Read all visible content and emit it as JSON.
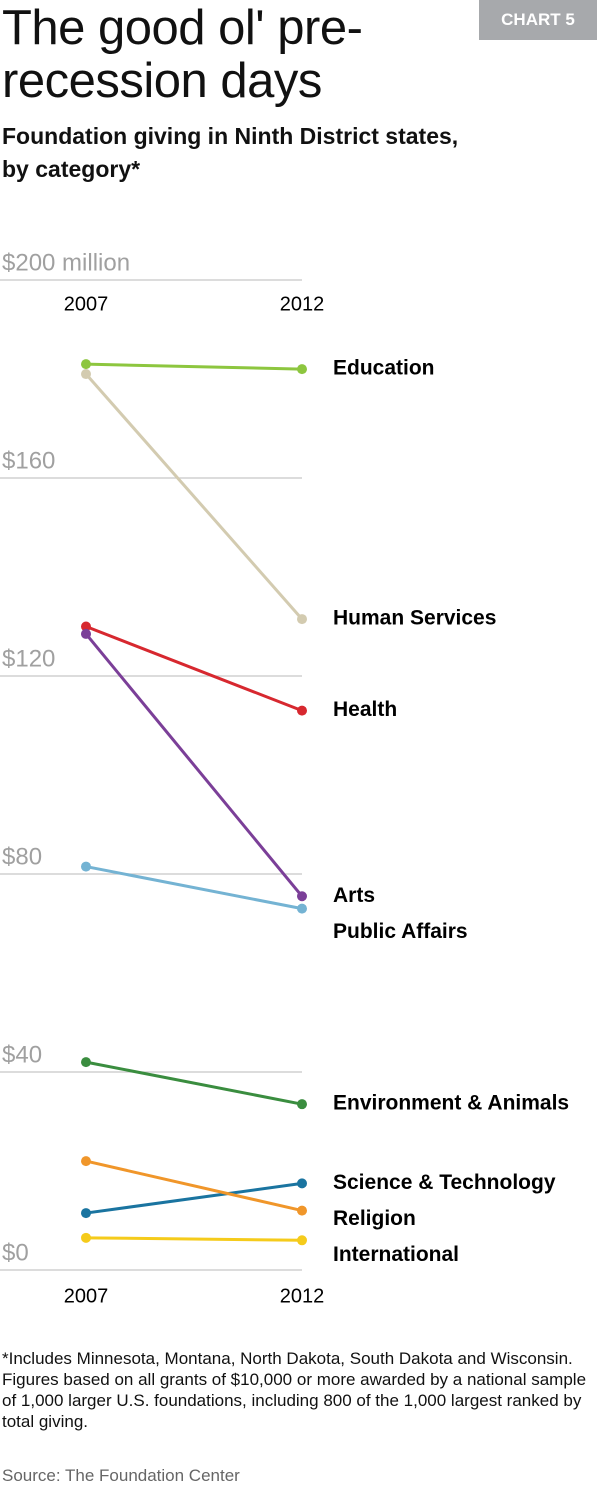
{
  "chart_data": {
    "type": "slope",
    "badge": "CHART 5",
    "title": "The good ol' pre-recession days",
    "subtitle": "Foundation giving in Ninth District states, by category*",
    "categories": [
      "2007",
      "2012"
    ],
    "ylim": [
      0,
      200
    ],
    "yticks": [
      {
        "value": 0,
        "label": "$0"
      },
      {
        "value": 40,
        "label": "$40"
      },
      {
        "value": 80,
        "label": "$80"
      },
      {
        "value": 120,
        "label": "$120"
      },
      {
        "value": 160,
        "label": "$160"
      },
      {
        "value": 200,
        "label": "$200 million"
      }
    ],
    "grid": true,
    "series": [
      {
        "name": "Education",
        "color": "#8dc63f",
        "values": [
          183,
          182
        ]
      },
      {
        "name": "Human Services",
        "color": "#d3cbb0",
        "values": [
          181,
          131.5
        ]
      },
      {
        "name": "Health",
        "color": "#d7282f",
        "values": [
          130,
          113
        ]
      },
      {
        "name": "Arts",
        "color": "#7b3f98",
        "values": [
          128.5,
          75.5
        ]
      },
      {
        "name": "Public Affairs",
        "color": "#74b3d3",
        "values": [
          81.5,
          73
        ]
      },
      {
        "name": "Environment & Animals",
        "color": "#3a8d3f",
        "values": [
          42,
          33.5
        ]
      },
      {
        "name": "Science & Technology",
        "color": "#1a74a0",
        "values": [
          11.5,
          17.5
        ]
      },
      {
        "name": "Religion",
        "color": "#f0962a",
        "values": [
          22,
          12
        ]
      },
      {
        "name": "International",
        "color": "#f5cb1b",
        "values": [
          6.5,
          6
        ]
      }
    ],
    "footnote": "*Includes Minnesota, Montana, North Dakota, South Dakota and Wisconsin. Figures based on all grants of $10,000 or more awarded by a national sample of 1,000 larger U.S. foundations, including 800 of the 1,000 largest ranked by total giving.",
    "source": "Source: The Foundation Center"
  }
}
